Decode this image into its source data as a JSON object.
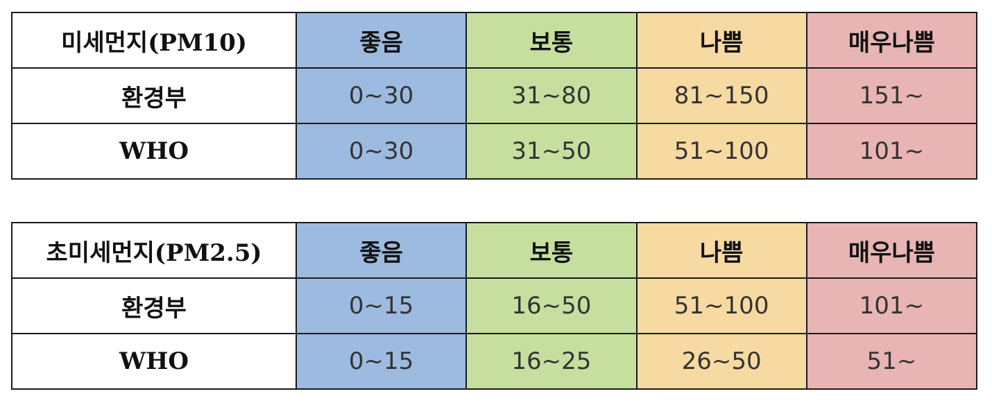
{
  "colors": {
    "good": "#9dbbe0",
    "normal": "#c6df9f",
    "bad": "#f7d9a2",
    "very_bad": "#e8b4b4",
    "label": "#ffffff"
  },
  "tables": [
    {
      "title": "미세먼지(PM10)",
      "headers": [
        "좋음",
        "보통",
        "나쁨",
        "매우나쁨"
      ],
      "rows": [
        {
          "label": "환경부",
          "values": [
            "0~30",
            "31~80",
            "81~150",
            "151~"
          ]
        },
        {
          "label": "WHO",
          "values": [
            "0~30",
            "31~50",
            "51~100",
            "101~"
          ]
        }
      ]
    },
    {
      "title": "초미세먼지(PM2.5)",
      "headers": [
        "좋음",
        "보통",
        "나쁨",
        "매우나쁨"
      ],
      "rows": [
        {
          "label": "환경부",
          "values": [
            "0~15",
            "16~50",
            "51~100",
            "101~"
          ]
        },
        {
          "label": "WHO",
          "values": [
            "0~15",
            "16~25",
            "26~50",
            "51~"
          ]
        }
      ]
    }
  ]
}
